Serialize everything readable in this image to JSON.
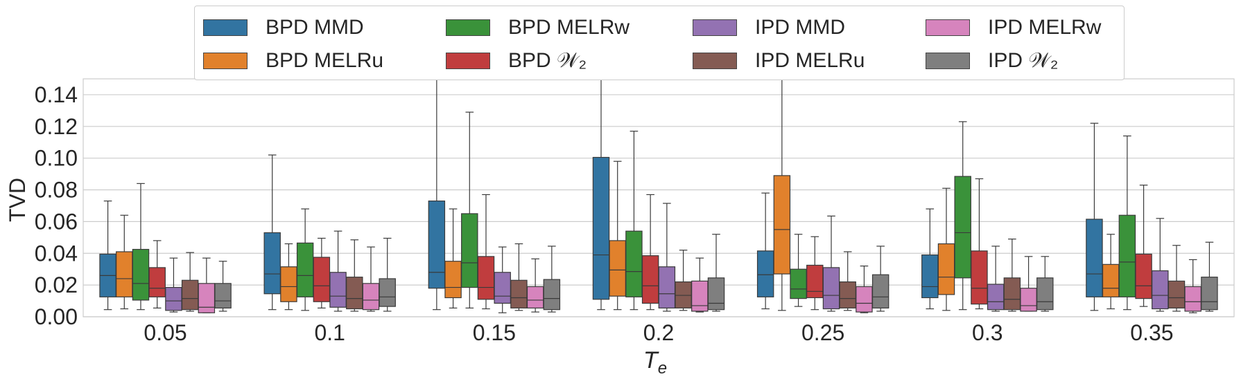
{
  "chart_data": {
    "type": "box",
    "xlabel": "T",
    "xlabel_sub": "e",
    "ylabel": "TVD",
    "ylim": [
      0,
      0.15
    ],
    "y_ticks": [
      "0.00",
      "0.02",
      "0.04",
      "0.06",
      "0.08",
      "0.10",
      "0.12",
      "0.14"
    ],
    "categories": [
      "0.05",
      "0.1",
      "0.15",
      "0.2",
      "0.25",
      "0.3",
      "0.35"
    ],
    "grid": true,
    "legend_position": "top",
    "series": [
      {
        "name": "BPD MMD",
        "color": "#3274a1",
        "boxes": [
          {
            "whislo": 0.0045,
            "q1": 0.0125,
            "med": 0.026,
            "q3": 0.0395,
            "whishi": 0.073
          },
          {
            "whislo": 0.0045,
            "q1": 0.0145,
            "med": 0.027,
            "q3": 0.053,
            "whishi": 0.102
          },
          {
            "whislo": 0.0045,
            "q1": 0.018,
            "med": 0.028,
            "q3": 0.073,
            "whishi": 0.16
          },
          {
            "whislo": 0.0045,
            "q1": 0.011,
            "med": 0.039,
            "q3": 0.1005,
            "whishi": 0.16
          },
          {
            "whislo": 0.005,
            "q1": 0.0125,
            "med": 0.0265,
            "q3": 0.0415,
            "whishi": 0.078
          },
          {
            "whislo": 0.005,
            "q1": 0.012,
            "med": 0.019,
            "q3": 0.039,
            "whishi": 0.068
          },
          {
            "whislo": 0.004,
            "q1": 0.0125,
            "med": 0.027,
            "q3": 0.0615,
            "whishi": 0.122
          }
        ]
      },
      {
        "name": "BPD MELRu",
        "color": "#e1812c",
        "boxes": [
          {
            "whislo": 0.005,
            "q1": 0.0125,
            "med": 0.024,
            "q3": 0.041,
            "whishi": 0.064
          },
          {
            "whislo": 0.0045,
            "q1": 0.0095,
            "med": 0.019,
            "q3": 0.0315,
            "whishi": 0.046
          },
          {
            "whislo": 0.0055,
            "q1": 0.012,
            "med": 0.0185,
            "q3": 0.035,
            "whishi": 0.068
          },
          {
            "whislo": 0.0045,
            "q1": 0.013,
            "med": 0.0295,
            "q3": 0.048,
            "whishi": 0.098
          },
          {
            "whislo": 0.004,
            "q1": 0.027,
            "med": 0.055,
            "q3": 0.089,
            "whishi": 0.16
          },
          {
            "whislo": 0.004,
            "q1": 0.014,
            "med": 0.025,
            "q3": 0.046,
            "whishi": 0.081
          },
          {
            "whislo": 0.005,
            "q1": 0.0125,
            "med": 0.018,
            "q3": 0.033,
            "whishi": 0.052
          }
        ]
      },
      {
        "name": "BPD MELRw",
        "color": "#3a923a",
        "boxes": [
          {
            "whislo": 0.0045,
            "q1": 0.0105,
            "med": 0.021,
            "q3": 0.0425,
            "whishi": 0.084
          },
          {
            "whislo": 0.004,
            "q1": 0.0125,
            "med": 0.026,
            "q3": 0.0465,
            "whishi": 0.068
          },
          {
            "whislo": 0.0055,
            "q1": 0.0185,
            "med": 0.034,
            "q3": 0.065,
            "whishi": 0.129
          },
          {
            "whislo": 0.0045,
            "q1": 0.0125,
            "med": 0.0285,
            "q3": 0.054,
            "whishi": 0.117
          },
          {
            "whislo": 0.0065,
            "q1": 0.0115,
            "med": 0.0175,
            "q3": 0.03,
            "whishi": 0.052
          },
          {
            "whislo": 0.0045,
            "q1": 0.0245,
            "med": 0.053,
            "q3": 0.0885,
            "whishi": 0.123
          },
          {
            "whislo": 0.0045,
            "q1": 0.0125,
            "med": 0.0345,
            "q3": 0.064,
            "whishi": 0.114
          }
        ]
      },
      {
        "name": "BPD W2",
        "color": "#c03d3e",
        "boxes": [
          {
            "whislo": 0.0055,
            "q1": 0.0125,
            "med": 0.018,
            "q3": 0.031,
            "whishi": 0.048
          },
          {
            "whislo": 0.0055,
            "q1": 0.0095,
            "med": 0.0195,
            "q3": 0.0375,
            "whishi": 0.0495
          },
          {
            "whislo": 0.005,
            "q1": 0.011,
            "med": 0.0185,
            "q3": 0.038,
            "whishi": 0.077
          },
          {
            "whislo": 0.0045,
            "q1": 0.0085,
            "med": 0.0195,
            "q3": 0.0385,
            "whishi": 0.077
          },
          {
            "whislo": 0.0045,
            "q1": 0.012,
            "med": 0.016,
            "q3": 0.0325,
            "whishi": 0.0505
          },
          {
            "whislo": 0.005,
            "q1": 0.008,
            "med": 0.018,
            "q3": 0.0415,
            "whishi": 0.087
          },
          {
            "whislo": 0.0065,
            "q1": 0.0115,
            "med": 0.0195,
            "q3": 0.0395,
            "whishi": 0.083
          }
        ]
      },
      {
        "name": "IPD MMD",
        "color": "#9372b2",
        "boxes": [
          {
            "whislo": 0.003,
            "q1": 0.004,
            "med": 0.01,
            "q3": 0.0185,
            "whishi": 0.037
          },
          {
            "whislo": 0.0035,
            "q1": 0.006,
            "med": 0.013,
            "q3": 0.028,
            "whishi": 0.054
          },
          {
            "whislo": 0.0025,
            "q1": 0.0085,
            "med": 0.013,
            "q3": 0.028,
            "whishi": 0.044
          },
          {
            "whislo": 0.0035,
            "q1": 0.0055,
            "med": 0.0145,
            "q3": 0.0315,
            "whishi": 0.0715
          },
          {
            "whislo": 0.0035,
            "q1": 0.005,
            "med": 0.0135,
            "q3": 0.031,
            "whishi": 0.0635
          },
          {
            "whislo": 0.0035,
            "q1": 0.0045,
            "med": 0.0095,
            "q3": 0.0205,
            "whishi": 0.0445
          },
          {
            "whislo": 0.0035,
            "q1": 0.005,
            "med": 0.0135,
            "q3": 0.029,
            "whishi": 0.062
          }
        ]
      },
      {
        "name": "IPD MELRu",
        "color": "#845b53",
        "boxes": [
          {
            "whislo": 0.0035,
            "q1": 0.0045,
            "med": 0.0115,
            "q3": 0.023,
            "whishi": 0.0405
          },
          {
            "whislo": 0.0035,
            "q1": 0.005,
            "med": 0.0115,
            "q3": 0.025,
            "whishi": 0.0485
          },
          {
            "whislo": 0.004,
            "q1": 0.0055,
            "med": 0.012,
            "q3": 0.023,
            "whishi": 0.046
          },
          {
            "whislo": 0.004,
            "q1": 0.0055,
            "med": 0.0135,
            "q3": 0.022,
            "whishi": 0.042
          },
          {
            "whislo": 0.004,
            "q1": 0.0055,
            "med": 0.0115,
            "q3": 0.022,
            "whishi": 0.041
          },
          {
            "whislo": 0.0035,
            "q1": 0.0045,
            "med": 0.011,
            "q3": 0.0245,
            "whishi": 0.049
          },
          {
            "whislo": 0.0035,
            "q1": 0.0055,
            "med": 0.012,
            "q3": 0.0225,
            "whishi": 0.045
          }
        ]
      },
      {
        "name": "IPD MELRw",
        "color": "#d684bd",
        "boxes": [
          {
            "whislo": 0.0025,
            "q1": 0.0025,
            "med": 0.006,
            "q3": 0.021,
            "whishi": 0.037
          },
          {
            "whislo": 0.0035,
            "q1": 0.0045,
            "med": 0.0105,
            "q3": 0.021,
            "whishi": 0.044
          },
          {
            "whislo": 0.003,
            "q1": 0.0055,
            "med": 0.0105,
            "q3": 0.019,
            "whishi": 0.0365
          },
          {
            "whislo": 0.003,
            "q1": 0.0035,
            "med": 0.007,
            "q3": 0.0225,
            "whishi": 0.037
          },
          {
            "whislo": 0.0025,
            "q1": 0.003,
            "med": 0.0085,
            "q3": 0.019,
            "whishi": 0.032
          },
          {
            "whislo": 0.0035,
            "q1": 0.0035,
            "med": 0.007,
            "q3": 0.018,
            "whishi": 0.038
          },
          {
            "whislo": 0.0025,
            "q1": 0.0035,
            "med": 0.0095,
            "q3": 0.019,
            "whishi": 0.036
          }
        ]
      },
      {
        "name": "IPD W2",
        "color": "#7f7f7f",
        "boxes": [
          {
            "whislo": 0.0035,
            "q1": 0.0055,
            "med": 0.01,
            "q3": 0.021,
            "whishi": 0.035
          },
          {
            "whislo": 0.0035,
            "q1": 0.0065,
            "med": 0.0125,
            "q3": 0.024,
            "whishi": 0.0495
          },
          {
            "whislo": 0.003,
            "q1": 0.0045,
            "med": 0.0115,
            "q3": 0.0235,
            "whishi": 0.0445
          },
          {
            "whislo": 0.0035,
            "q1": 0.0045,
            "med": 0.0085,
            "q3": 0.0245,
            "whishi": 0.052
          },
          {
            "whislo": 0.0035,
            "q1": 0.0055,
            "med": 0.0125,
            "q3": 0.0265,
            "whishi": 0.0445
          },
          {
            "whislo": 0.0035,
            "q1": 0.0045,
            "med": 0.0095,
            "q3": 0.0245,
            "whishi": 0.038
          },
          {
            "whislo": 0.0035,
            "q1": 0.0045,
            "med": 0.0095,
            "q3": 0.025,
            "whishi": 0.047
          }
        ]
      }
    ]
  },
  "legend": {
    "items": [
      {
        "label": "BPD MMD",
        "color": "#3274a1"
      },
      {
        "label": "BPD MELRu",
        "color": "#e1812c"
      },
      {
        "label": "BPD MELRw",
        "color": "#3a923a"
      },
      {
        "label": "BPD 𝒲₂",
        "color": "#c03d3e"
      },
      {
        "label": "IPD MMD",
        "color": "#9372b2"
      },
      {
        "label": "IPD MELRu",
        "color": "#845b53"
      },
      {
        "label": "IPD MELRw",
        "color": "#d684bd"
      },
      {
        "label": "IPD 𝒲₂",
        "color": "#7f7f7f"
      }
    ]
  }
}
